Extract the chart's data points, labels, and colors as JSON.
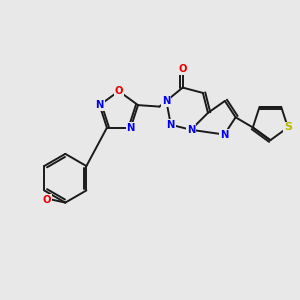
{
  "bg_color": "#e8e8e8",
  "bond_color": "#1a1a1a",
  "bond_width": 1.4,
  "atom_colors": {
    "N": "#0000ee",
    "O": "#ee0000",
    "S": "#b8b800",
    "C": "#1a1a1a"
  },
  "font_size": 7.2,
  "font_size_s": 8.0
}
